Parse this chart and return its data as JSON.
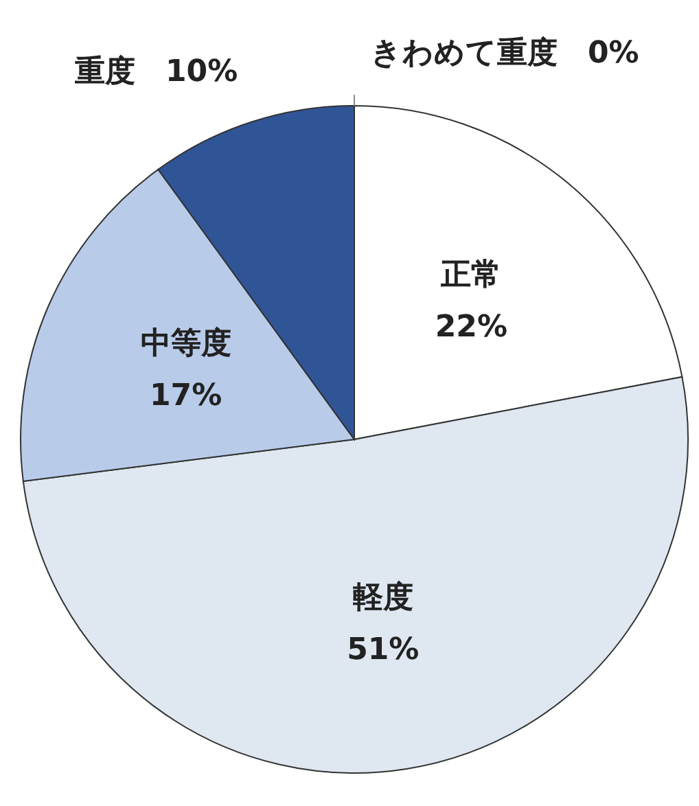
{
  "chart_data": {
    "type": "pie",
    "categories": [
      "正常",
      "軽度",
      "中等度",
      "重度",
      "きわめて重度"
    ],
    "values": [
      22,
      51,
      17,
      10,
      0
    ],
    "colors": [
      "#ffffff",
      "#dfe7f1",
      "#b8cbe9",
      "#2f5597",
      "#8c8c8c"
    ],
    "value_labels": [
      "22%",
      "51%",
      "17%",
      "10%",
      "0%"
    ]
  }
}
